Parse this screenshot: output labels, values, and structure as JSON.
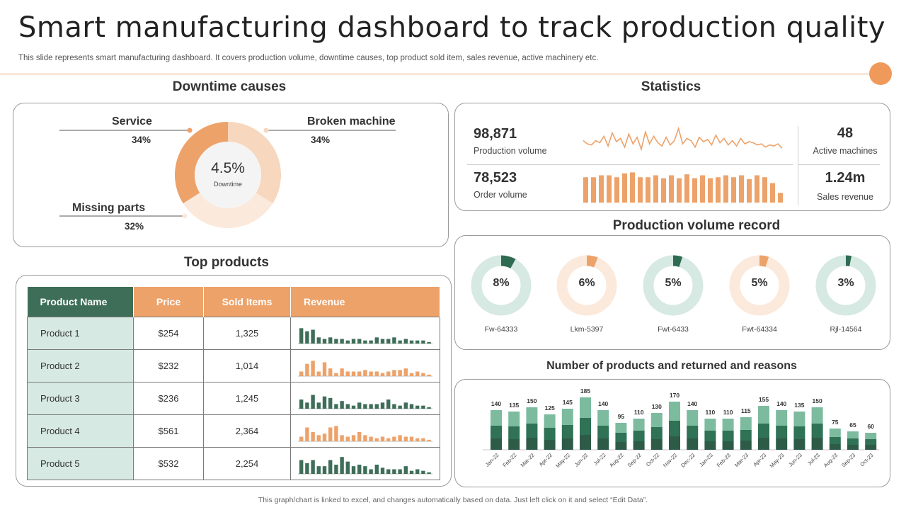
{
  "header": {
    "title": "Smart manufacturing dashboard to track production quality",
    "subtitle": "This slide represents smart manufacturing dashboard. It covers production volume, downtime causes, top product sold item, sales revenue, active machinery etc."
  },
  "colors": {
    "orange": "#eda26a",
    "light_orange": "#f7d7bd",
    "pale_orange": "#fbe9dc",
    "green": "#3e6e58",
    "mid_green": "#2e6b52",
    "light_green": "#7dbb9f",
    "pale_green": "#d6e9e2"
  },
  "downtime": {
    "heading": "Downtime causes",
    "center_value": "4.5%",
    "center_label": "Downtime",
    "labels": [
      {
        "name": "Service",
        "pct": "34%"
      },
      {
        "name": "Broken machine",
        "pct": "34%"
      },
      {
        "name": "Missing parts",
        "pct": "32%"
      }
    ]
  },
  "statistics": {
    "heading": "Statistics",
    "production_volume": {
      "value": "98,871",
      "label": "Production volume"
    },
    "order_volume": {
      "value": "78,523",
      "label": "Order volume"
    },
    "active_machines": {
      "value": "48",
      "label": "Active machines"
    },
    "sales_revenue": {
      "value": "1.24m",
      "label": "Sales revenue"
    }
  },
  "top_products": {
    "heading": "Top  products",
    "columns": [
      "Product Name",
      "Price",
      "Sold Items",
      "Revenue"
    ],
    "rows": [
      {
        "name": "Product 1",
        "price": "$254",
        "sold": "1,325"
      },
      {
        "name": "Product 2",
        "price": "$232",
        "sold": "1,014"
      },
      {
        "name": "Product 3",
        "price": "$236",
        "sold": "1,245"
      },
      {
        "name": "Product 4",
        "price": "$561",
        "sold": "2,364"
      },
      {
        "name": "Product 5",
        "price": "$532",
        "sold": "2,254"
      }
    ]
  },
  "production_record": {
    "heading": "Production volume record",
    "items": [
      {
        "label": "Fw-64333",
        "pct": "8%"
      },
      {
        "label": "Lkm-5397",
        "pct": "6%"
      },
      {
        "label": "Fwt-6433",
        "pct": "5%"
      },
      {
        "label": "Fwt-64334",
        "pct": "5%"
      },
      {
        "label": "Rjl-14564",
        "pct": "3%"
      }
    ]
  },
  "returns": {
    "heading": "Number of products and returned and reasons"
  },
  "footer": "This graph/chart is linked to excel, and changes automatically based on data. Just left click on it and select “Edit Data”.",
  "chart_data": [
    {
      "type": "pie",
      "title": "Downtime causes",
      "categories": [
        "Service",
        "Broken machine",
        "Missing parts"
      ],
      "values": [
        34,
        34,
        32
      ]
    },
    {
      "type": "line",
      "title": "Production volume",
      "values": [
        14,
        11,
        10,
        14,
        12,
        18,
        9,
        21,
        13,
        16,
        8,
        20,
        11,
        17,
        6,
        22,
        11,
        18,
        12,
        9,
        17,
        10,
        14,
        25,
        11,
        16,
        14,
        8,
        17,
        13,
        15,
        10,
        19,
        12,
        16,
        10,
        14,
        9,
        16,
        11,
        13,
        12,
        10,
        11,
        8,
        10,
        9,
        11,
        7
      ]
    },
    {
      "type": "bar",
      "title": "Order volume",
      "values": [
        26,
        26,
        28,
        28,
        26,
        30,
        31,
        26,
        26,
        28,
        25,
        28,
        25,
        29,
        25,
        28,
        25,
        26,
        28,
        26,
        28,
        24,
        28,
        26,
        20,
        10
      ]
    },
    {
      "type": "pie",
      "title": "Production volume record",
      "categories": [
        "Fw-64333",
        "Lkm-5397",
        "Fwt-6433",
        "Fwt-64334",
        "Rjl-14564"
      ],
      "values": [
        8,
        6,
        5,
        5,
        3
      ]
    },
    {
      "type": "bar",
      "title": "Number of products and returned and reasons",
      "categories": [
        "Jan-22",
        "Feb-22",
        "Mar-22",
        "Apr-22",
        "May-22",
        "Jun-22",
        "Jul-22",
        "Aug-22",
        "Sep-22",
        "Oct-22",
        "Nov-22",
        "Dec-22",
        "Jan-23",
        "Feb-23",
        "Mar-23",
        "Apr-23",
        "May-23",
        "Jun-23",
        "Jul-23",
        "Aug-23",
        "Sep-23",
        "Oct-23"
      ],
      "values": [
        140,
        135,
        150,
        125,
        145,
        185,
        140,
        95,
        110,
        130,
        170,
        140,
        110,
        110,
        115,
        155,
        140,
        135,
        150,
        75,
        65,
        60
      ]
    },
    {
      "type": "bar",
      "title": "Revenue",
      "series": [
        {
          "values": [
            10,
            8,
            9,
            4,
            3,
            4,
            3,
            3,
            2,
            3,
            3,
            2,
            2,
            4,
            3,
            3,
            4,
            2,
            3,
            2,
            2,
            2,
            1
          ]
        },
        {
          "values": [
            3,
            8,
            10,
            3,
            9,
            5,
            2,
            5,
            3,
            3,
            3,
            4,
            3,
            3,
            2,
            3,
            4,
            4,
            5,
            2,
            3,
            2,
            1
          ]
        },
        {
          "values": [
            6,
            4,
            9,
            4,
            8,
            7,
            3,
            5,
            3,
            2,
            4,
            3,
            3,
            3,
            4,
            6,
            3,
            2,
            4,
            3,
            2,
            2,
            1
          ]
        },
        {
          "values": [
            3,
            9,
            6,
            4,
            5,
            9,
            10,
            4,
            3,
            4,
            6,
            4,
            3,
            2,
            3,
            2,
            3,
            4,
            3,
            3,
            2,
            2,
            1
          ]
        },
        {
          "values": [
            9,
            7,
            9,
            5,
            5,
            9,
            6,
            11,
            8,
            5,
            6,
            5,
            3,
            6,
            4,
            3,
            3,
            3,
            5,
            2,
            3,
            2,
            1
          ]
        }
      ]
    }
  ]
}
